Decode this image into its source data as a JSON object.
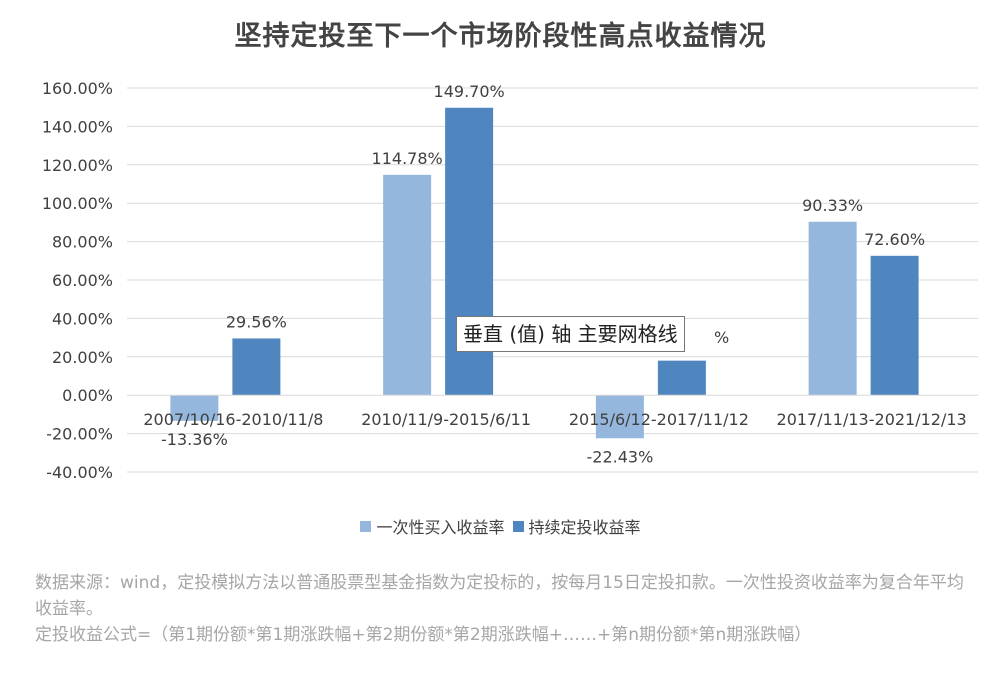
{
  "chart_data": {
    "type": "bar",
    "title": "坚持定投至下一个市场阶段性高点收益情况",
    "categories": [
      "2007/10/16-2010/11/8",
      "2010/11/9-2015/6/11",
      "2015/6/12-2017/11/12",
      "2017/11/13-2021/12/13"
    ],
    "series": [
      {
        "name": "一次性买入收益率",
        "color": "#95b7de",
        "values": [
          -13.36,
          114.78,
          -22.43,
          90.33
        ],
        "labels": [
          "-13.36%",
          "114.78%",
          "-22.43%",
          "90.33%"
        ]
      },
      {
        "name": "持续定投收益率",
        "color": "#4f86c0",
        "values": [
          29.56,
          149.7,
          18.0,
          72.6
        ],
        "labels": [
          "29.56%",
          "149.70%",
          "",
          "72.60%"
        ]
      }
    ],
    "ylim": [
      -40,
      160
    ],
    "yticks": [
      -40,
      -20,
      0,
      20,
      40,
      60,
      80,
      100,
      120,
      140,
      160
    ],
    "ytick_labels": [
      "-40.00%",
      "-20.00%",
      "0.00%",
      "20.00%",
      "40.00%",
      "60.00%",
      "80.00%",
      "100.00%",
      "120.00%",
      "140.00%",
      "160.00%"
    ],
    "grid": true,
    "legend_position": "bottom"
  },
  "tooltip": {
    "text": "垂直 (值) 轴 主要网格线",
    "occluded_label_fragment": "%"
  },
  "notes": {
    "line1": "数据来源：wind，定投模拟方法以普通股票型基金指数为定投标的，按每月15日定投扣款。一次性投资收益率为复合年平均收益率。",
    "line2": "定投收益公式=（第1期份额*第1期涨跌幅+第2期份额*第2期涨跌幅+……+第n期份额*第n期涨跌幅）"
  }
}
